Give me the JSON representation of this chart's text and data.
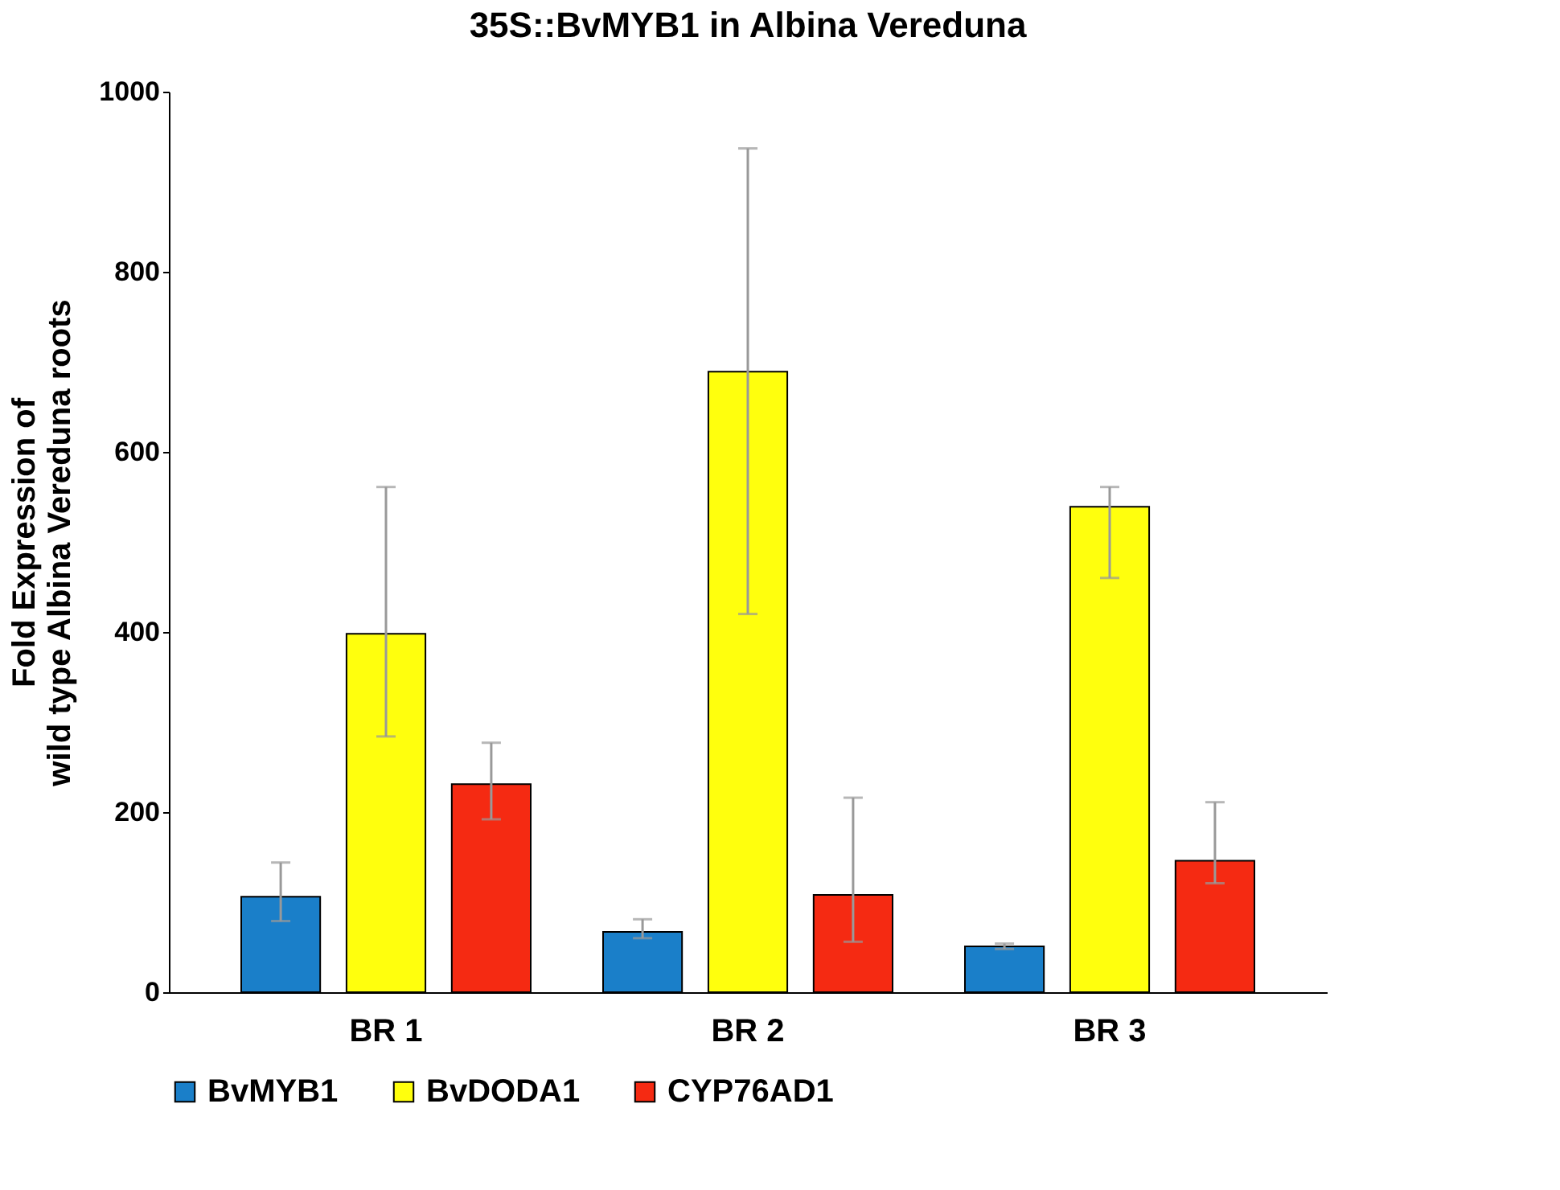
{
  "chart_data": {
    "type": "bar",
    "title": "35S::BvMYB1 in Albina Vereduna",
    "ylabel": "Fold Expression of\nwild type Albina Vereduna roots",
    "categories": [
      "BR 1",
      "BR 2",
      "BR 3"
    ],
    "series": [
      {
        "name": "BvMYB1",
        "color": "#1a7fc9",
        "values": [
          106,
          67,
          51
        ],
        "errors": [
          [
            79,
            144
          ],
          [
            60,
            81
          ],
          [
            48,
            54
          ]
        ]
      },
      {
        "name": "BvDODA1",
        "color": "#ffff0d",
        "values": [
          398,
          689,
          539
        ],
        "errors": [
          [
            284,
            561
          ],
          [
            420,
            937
          ],
          [
            460,
            561
          ]
        ]
      },
      {
        "name": "CYP76AD1",
        "color": "#f52a12",
        "values": [
          231,
          108,
          146
        ],
        "errors": [
          [
            192,
            277
          ],
          [
            56,
            216
          ],
          [
            121,
            211
          ]
        ]
      }
    ],
    "ylim": [
      0,
      1000
    ],
    "yticks": [
      0,
      200,
      400,
      600,
      800,
      1000
    ],
    "grid": false,
    "legend": "bottom"
  }
}
